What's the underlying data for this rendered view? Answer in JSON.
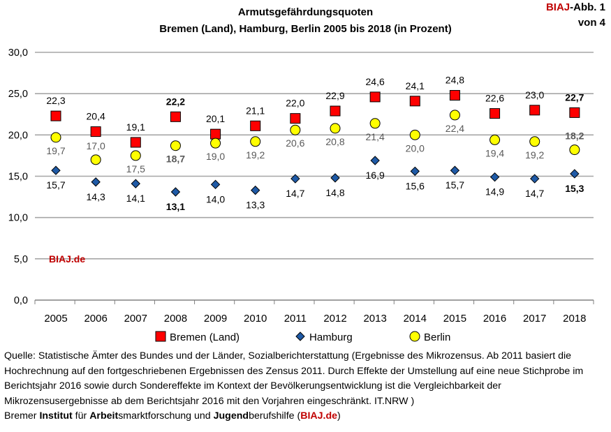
{
  "header": {
    "title_line1": "Armutsgefährdungsquoten",
    "title_line2": "Bremen (Land), Hamburg, Berlin 2005 bis 2018 (in Prozent)",
    "badge_brand": "BIAJ",
    "badge_rest": "-Abb. 1",
    "badge_line2": "von 4"
  },
  "watermark": "BIAJ.de",
  "chart_data": {
    "type": "scatter",
    "title": "Armutsgefährdungsquoten Bremen (Land), Hamburg, Berlin 2005 bis 2018 (in Prozent)",
    "categories": [
      "2005",
      "2006",
      "2007",
      "2008",
      "2009",
      "2010",
      "2011",
      "2012",
      "2013",
      "2014",
      "2015",
      "2016",
      "2017",
      "2018"
    ],
    "ylim": [
      0,
      30
    ],
    "yticks": [
      "0,0",
      "5,0",
      "10,0",
      "15,0",
      "20,0",
      "25,0",
      "30,0"
    ],
    "grid": true,
    "legend_position": "bottom",
    "series": [
      {
        "name": "Bremen (Land)",
        "marker": "square",
        "color": "#ff0000",
        "values": [
          22.3,
          20.4,
          19.1,
          22.2,
          20.1,
          21.1,
          22.0,
          22.9,
          24.6,
          24.1,
          24.8,
          22.6,
          23.0,
          22.7
        ],
        "labels": [
          "22,3",
          "20,4",
          "19,1",
          "22,2",
          "20,1",
          "21,1",
          "22,0",
          "22,9",
          "24,6",
          "24,1",
          "24,8",
          "22,6",
          "23,0",
          "22,7"
        ],
        "bold_labels": [
          3,
          13
        ]
      },
      {
        "name": "Hamburg",
        "marker": "diamond",
        "color": "#1f5aa6",
        "values": [
          15.7,
          14.3,
          14.1,
          13.1,
          14.0,
          13.3,
          14.7,
          14.8,
          16.9,
          15.6,
          15.7,
          14.9,
          14.7,
          15.3
        ],
        "labels": [
          "15,7",
          "14,3",
          "14,1",
          "13,1",
          "14,0",
          "13,3",
          "14,7",
          "14,8",
          "16,9",
          "15,6",
          "15,7",
          "14,9",
          "14,7",
          "15,3"
        ],
        "bold_labels": [
          3,
          13
        ]
      },
      {
        "name": "Berlin",
        "marker": "circle",
        "color": "#ffff00",
        "values": [
          19.7,
          17.0,
          17.5,
          18.7,
          19.0,
          19.2,
          20.6,
          20.8,
          21.4,
          20.0,
          22.4,
          19.4,
          19.2,
          18.2
        ],
        "labels": [
          "19,7",
          "17,0",
          "17,5",
          "18,7",
          "19,0",
          "19,2",
          "20,6",
          "20,8",
          "21,4",
          "20,0",
          "22,4",
          "19,4",
          "19,2",
          "18,2"
        ],
        "bold_labels": [
          3,
          13
        ]
      }
    ]
  },
  "source": {
    "text": "Quelle: Statistische Ämter des Bundes und der Länder, Sozialberichterstattung (Ergebnisse des  Mikrozensus. Ab 2011 basiert die Hochrechnung auf den fortgeschriebenen Ergebnissen des Zensus 2011. Durch Effekte der Umstellung auf eine neue Stichprobe im Berichtsjahr 2016 sowie durch Sondereffekte im Kontext der Bevölkerungsentwicklung ist die Vergleichbarkeit der Mikrozensusergebnisse ab dem Berichtsjahr 2016 mit den Vorjahren eingeschränkt. IT.NRW )",
    "credit_1": "Bremer ",
    "credit_2": "Institut",
    "credit_3": " für ",
    "credit_4": "Arbeit",
    "credit_5": "smarktforschung und ",
    "credit_6": "Jugend",
    "credit_7": "berufshilfe (",
    "credit_8": "BIAJ.de",
    "credit_9": ")"
  }
}
